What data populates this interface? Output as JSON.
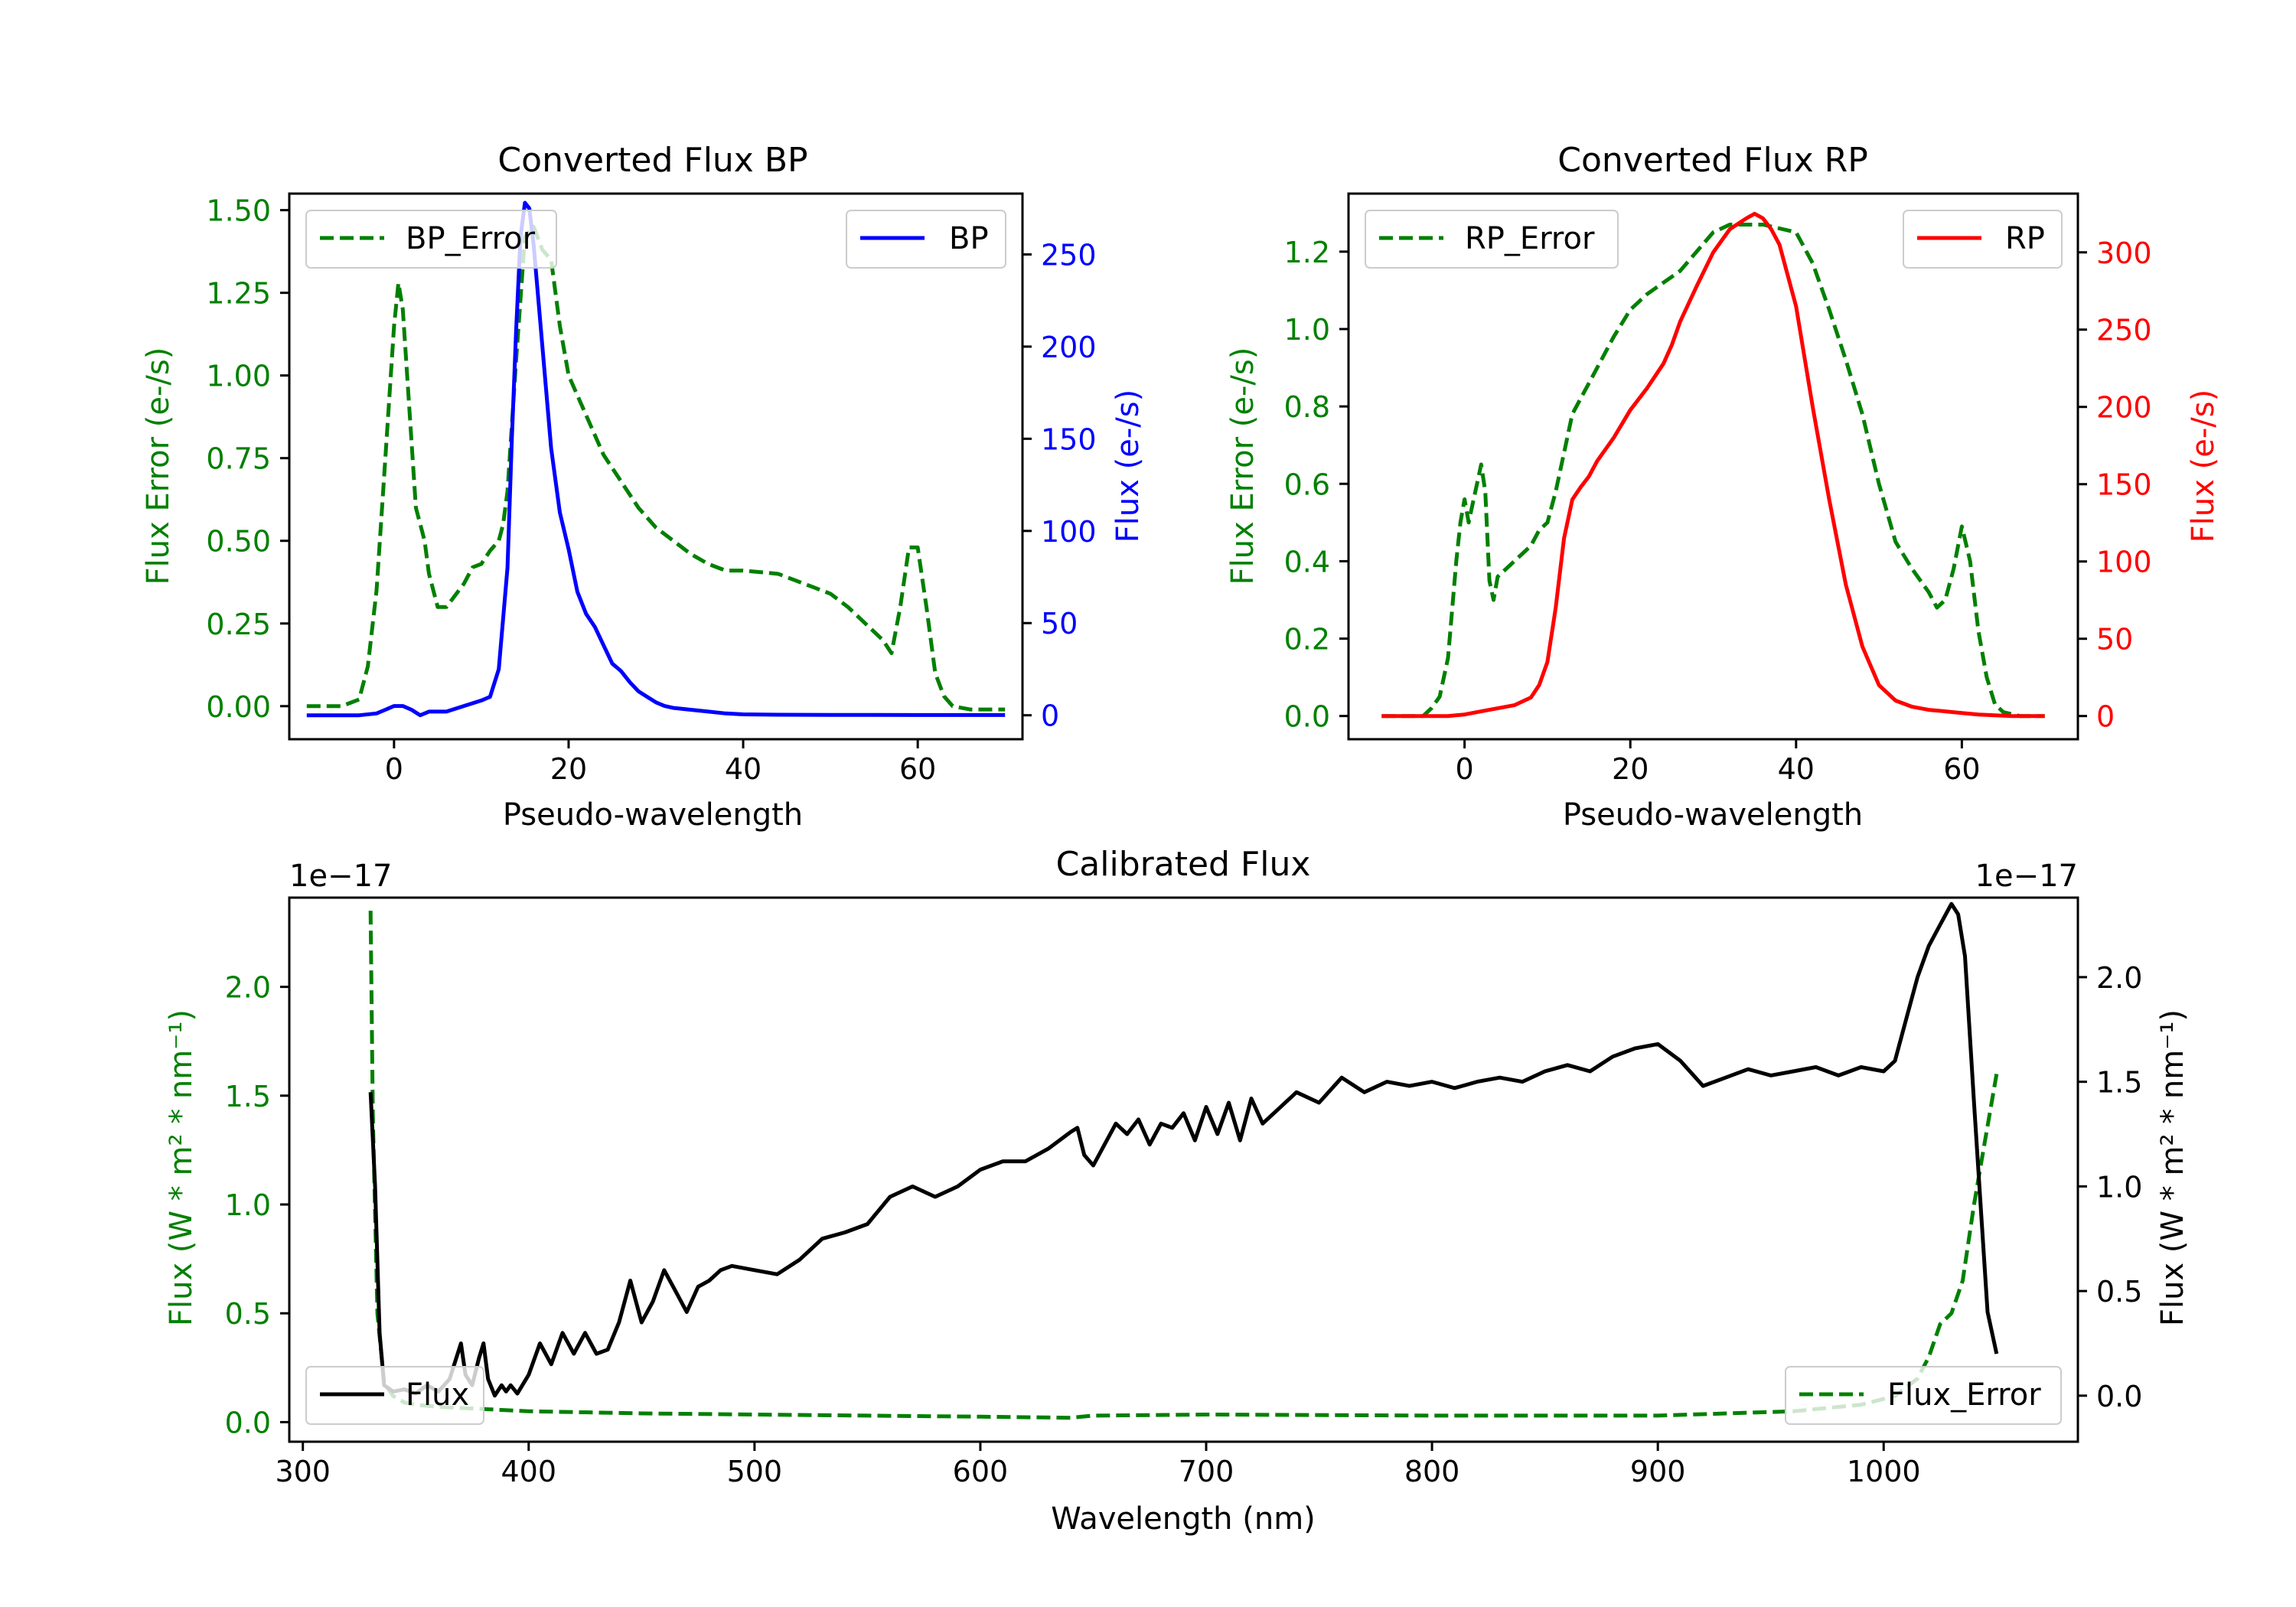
{
  "colors": {
    "bp": "#0000ff",
    "rp": "#ff0000",
    "error": "#008000",
    "flux": "#000000",
    "axis": "#000000"
  },
  "chart_data": [
    {
      "id": "bp",
      "type": "line",
      "title": "Converted Flux BP",
      "xlabel": "Pseudo-wavelength",
      "ylabel_left": "Flux Error (e-/s)",
      "ylabel_right": "Flux (e-/s)",
      "xlim": [
        -12,
        72
      ],
      "ylim_left": [
        -0.1,
        1.55
      ],
      "ylim_right": [
        -13,
        283
      ],
      "xticks": [
        0,
        20,
        40,
        60
      ],
      "yticks_left": [
        0.0,
        0.25,
        0.5,
        0.75,
        1.0,
        1.25,
        1.5
      ],
      "yticks_left_labels": [
        "0.00",
        "0.25",
        "0.50",
        "0.75",
        "1.00",
        "1.25",
        "1.50"
      ],
      "yticks_right": [
        0,
        50,
        100,
        150,
        200,
        250
      ],
      "yticks_right_labels": [
        "0",
        "50",
        "100",
        "150",
        "200",
        "250"
      ],
      "legend_left": {
        "label": "BP_Error",
        "loc": "upper left"
      },
      "legend_right": {
        "label": "BP",
        "loc": "upper right"
      },
      "series_error": {
        "name": "BP_Error",
        "x": [
          -10,
          -6,
          -4,
          -3,
          -2,
          -1,
          0,
          0.5,
          1,
          2,
          2.5,
          3,
          3.5,
          4,
          5,
          6,
          8,
          9,
          10,
          11,
          12,
          12.5,
          13,
          14,
          15,
          16,
          17,
          18,
          19,
          20,
          22,
          24,
          26,
          28,
          30,
          32,
          34,
          36,
          38,
          40,
          44,
          46,
          48,
          50,
          52,
          54,
          56,
          57,
          58,
          59,
          60,
          61,
          62,
          63,
          64,
          66,
          68,
          70
        ],
        "y": [
          0.0,
          0.0,
          0.02,
          0.12,
          0.35,
          0.75,
          1.15,
          1.28,
          1.2,
          0.8,
          0.6,
          0.55,
          0.5,
          0.4,
          0.3,
          0.3,
          0.37,
          0.42,
          0.43,
          0.47,
          0.5,
          0.55,
          0.65,
          1.05,
          1.42,
          1.45,
          1.38,
          1.35,
          1.15,
          1.0,
          0.88,
          0.76,
          0.68,
          0.6,
          0.54,
          0.5,
          0.46,
          0.43,
          0.41,
          0.41,
          0.4,
          0.38,
          0.36,
          0.34,
          0.3,
          0.25,
          0.2,
          0.16,
          0.3,
          0.48,
          0.48,
          0.3,
          0.1,
          0.03,
          0.0,
          -0.01,
          -0.01,
          -0.01
        ]
      },
      "series_flux": {
        "name": "BP",
        "x": [
          -10,
          -6,
          -4,
          -2,
          -1,
          0,
          1,
          2,
          3,
          4,
          6,
          8,
          10,
          11,
          12,
          13,
          13.5,
          14,
          14.5,
          15,
          15.5,
          16,
          17,
          18,
          19,
          20,
          21,
          22,
          23,
          24,
          25,
          26,
          27,
          28,
          29,
          30,
          31,
          32,
          34,
          36,
          38,
          40,
          44,
          50,
          55,
          60,
          65,
          70
        ],
        "y": [
          0,
          0,
          0,
          1,
          3,
          5,
          5,
          3,
          0,
          2,
          2,
          5,
          8,
          10,
          25,
          80,
          150,
          210,
          260,
          278,
          275,
          255,
          200,
          145,
          110,
          90,
          67,
          55,
          48,
          38,
          28,
          24,
          18,
          13,
          10,
          7,
          5,
          4,
          3,
          2,
          1,
          0.5,
          0.3,
          0.2,
          0.2,
          0.1,
          0.1,
          0.1
        ]
      }
    },
    {
      "id": "rp",
      "type": "line",
      "title": "Converted Flux RP",
      "xlabel": "Pseudo-wavelength",
      "ylabel_left": "Flux Error (e-/s)",
      "ylabel_right": "Flux (e-/s)",
      "xlim": [
        -14,
        74
      ],
      "ylim_left": [
        -0.06,
        1.35
      ],
      "ylim_right": [
        -15,
        338
      ],
      "xticks": [
        0,
        20,
        40,
        60
      ],
      "yticks_left": [
        0.0,
        0.2,
        0.4,
        0.6,
        0.8,
        1.0,
        1.2
      ],
      "yticks_left_labels": [
        "0.0",
        "0.2",
        "0.4",
        "0.6",
        "0.8",
        "1.0",
        "1.2"
      ],
      "yticks_right": [
        0,
        50,
        100,
        150,
        200,
        250,
        300
      ],
      "yticks_right_labels": [
        "0",
        "50",
        "100",
        "150",
        "200",
        "250",
        "300"
      ],
      "legend_left": {
        "label": "RP_Error",
        "loc": "upper left"
      },
      "legend_right": {
        "label": "RP",
        "loc": "upper right"
      },
      "series_error": {
        "name": "RP_Error",
        "x": [
          -10,
          -5,
          -4,
          -3,
          -2,
          -1,
          -0.5,
          0,
          0.5,
          1,
          1.5,
          2,
          2.5,
          3,
          3.5,
          4,
          5,
          6,
          7,
          8,
          9,
          10,
          11,
          12,
          13,
          14,
          15,
          16,
          18,
          20,
          22,
          24,
          26,
          28,
          30,
          32,
          34,
          36,
          38,
          40,
          42,
          44,
          46,
          48,
          50,
          52,
          54,
          56,
          57,
          58,
          59,
          60,
          61,
          62,
          63,
          64,
          65,
          67,
          70
        ],
        "y": [
          0.0,
          0.0,
          0.02,
          0.05,
          0.15,
          0.4,
          0.5,
          0.56,
          0.5,
          0.55,
          0.6,
          0.65,
          0.58,
          0.35,
          0.3,
          0.36,
          0.38,
          0.4,
          0.42,
          0.44,
          0.48,
          0.5,
          0.58,
          0.68,
          0.78,
          0.82,
          0.86,
          0.9,
          0.98,
          1.05,
          1.09,
          1.12,
          1.15,
          1.2,
          1.25,
          1.27,
          1.27,
          1.27,
          1.26,
          1.25,
          1.17,
          1.05,
          0.92,
          0.78,
          0.6,
          0.45,
          0.38,
          0.32,
          0.28,
          0.3,
          0.38,
          0.49,
          0.4,
          0.22,
          0.1,
          0.03,
          0.01,
          0.0,
          0.0
        ]
      },
      "series_flux": {
        "name": "RP",
        "x": [
          -10,
          -4,
          -2,
          0,
          2,
          4,
          6,
          8,
          9,
          10,
          11,
          12,
          13,
          14,
          15,
          16,
          18,
          20,
          22,
          24,
          25,
          26,
          28,
          30,
          32,
          34,
          35,
          36,
          37,
          38,
          40,
          42,
          44,
          46,
          48,
          50,
          52,
          54,
          55,
          56,
          58,
          60,
          62,
          64,
          66,
          70
        ],
        "y": [
          0,
          0,
          0,
          1,
          3,
          5,
          7,
          12,
          20,
          35,
          70,
          115,
          140,
          148,
          155,
          165,
          180,
          198,
          212,
          228,
          240,
          255,
          278,
          300,
          315,
          322,
          325,
          322,
          315,
          305,
          265,
          200,
          140,
          85,
          45,
          20,
          10,
          6,
          5,
          4,
          3,
          2,
          1,
          0.5,
          0,
          0
        ]
      }
    },
    {
      "id": "cal",
      "type": "line",
      "title": "Calibrated Flux",
      "xlabel": "Wavelength (nm)",
      "ylabel_left": "Flux (W * m² * nm⁻¹)",
      "ylabel_right": "Flux (W * m² * nm⁻¹)",
      "offset_left": "1e−17",
      "offset_right": "1e−17",
      "xlim": [
        294,
        1086
      ],
      "ylim_left": [
        -0.09,
        2.41
      ],
      "ylim_right": [
        -0.22,
        2.38
      ],
      "xticks": [
        300,
        400,
        500,
        600,
        700,
        800,
        900,
        1000
      ],
      "yticks_left": [
        0.0,
        0.5,
        1.0,
        1.5,
        2.0
      ],
      "yticks_left_labels": [
        "0.0",
        "0.5",
        "1.0",
        "1.5",
        "2.0"
      ],
      "yticks_right": [
        0.0,
        0.5,
        1.0,
        1.5,
        2.0
      ],
      "yticks_right_labels": [
        "0.0",
        "0.5",
        "1.0",
        "1.5",
        "2.0"
      ],
      "legend_left": {
        "label": "Flux",
        "loc": "lower left"
      },
      "legend_right": {
        "label": "Flux_Error",
        "loc": "lower right"
      },
      "series_error": {
        "name": "Flux_Error",
        "x": [
          330,
          331,
          333,
          336,
          340,
          345,
          350,
          360,
          380,
          400,
          450,
          500,
          550,
          600,
          640,
          650,
          700,
          800,
          900,
          960,
          990,
          1005,
          1015,
          1020,
          1025,
          1030,
          1035,
          1040,
          1045,
          1050
        ],
        "y": [
          2.35,
          1.4,
          0.5,
          0.18,
          0.12,
          0.09,
          0.08,
          0.07,
          0.06,
          0.05,
          0.04,
          0.035,
          0.03,
          0.025,
          0.02,
          0.03,
          0.035,
          0.03,
          0.03,
          0.05,
          0.08,
          0.12,
          0.2,
          0.3,
          0.45,
          0.5,
          0.65,
          1.0,
          1.3,
          1.6
        ]
      },
      "series_flux": {
        "name": "Flux",
        "x": [
          330,
          332,
          334,
          336,
          340,
          345,
          350,
          355,
          360,
          365,
          370,
          372,
          375,
          378,
          380,
          382,
          385,
          388,
          390,
          392,
          395,
          400,
          405,
          410,
          415,
          420,
          425,
          430,
          435,
          440,
          445,
          450,
          455,
          460,
          465,
          470,
          475,
          480,
          485,
          490,
          500,
          510,
          520,
          530,
          540,
          550,
          560,
          570,
          580,
          590,
          600,
          610,
          620,
          630,
          640,
          643,
          646,
          650,
          655,
          660,
          665,
          670,
          675,
          680,
          685,
          690,
          695,
          700,
          705,
          710,
          715,
          720,
          725,
          730,
          740,
          750,
          760,
          770,
          780,
          790,
          800,
          810,
          820,
          830,
          840,
          850,
          860,
          870,
          880,
          890,
          900,
          910,
          920,
          930,
          940,
          950,
          960,
          970,
          980,
          990,
          1000,
          1005,
          1010,
          1015,
          1020,
          1025,
          1030,
          1033,
          1036,
          1040,
          1043,
          1046,
          1050
        ],
        "y": [
          1.45,
          1.0,
          0.3,
          0.05,
          0.02,
          0.03,
          0.01,
          0.05,
          0.02,
          0.08,
          0.25,
          0.1,
          0.05,
          0.18,
          0.25,
          0.08,
          0.0,
          0.05,
          0.02,
          0.05,
          0.01,
          0.1,
          0.25,
          0.15,
          0.3,
          0.2,
          0.3,
          0.2,
          0.22,
          0.35,
          0.55,
          0.35,
          0.45,
          0.6,
          0.5,
          0.4,
          0.52,
          0.55,
          0.6,
          0.62,
          0.6,
          0.58,
          0.65,
          0.75,
          0.78,
          0.82,
          0.95,
          1.0,
          0.95,
          1.0,
          1.08,
          1.12,
          1.12,
          1.18,
          1.26,
          1.28,
          1.15,
          1.1,
          1.2,
          1.3,
          1.25,
          1.32,
          1.2,
          1.3,
          1.28,
          1.35,
          1.22,
          1.38,
          1.25,
          1.4,
          1.22,
          1.42,
          1.3,
          1.35,
          1.45,
          1.4,
          1.52,
          1.45,
          1.5,
          1.48,
          1.5,
          1.47,
          1.5,
          1.52,
          1.5,
          1.55,
          1.58,
          1.55,
          1.62,
          1.66,
          1.68,
          1.6,
          1.48,
          1.52,
          1.56,
          1.53,
          1.55,
          1.57,
          1.53,
          1.57,
          1.55,
          1.6,
          1.8,
          2.0,
          2.15,
          2.25,
          2.35,
          2.3,
          2.1,
          1.4,
          0.9,
          0.4,
          0.2
        ]
      }
    }
  ]
}
